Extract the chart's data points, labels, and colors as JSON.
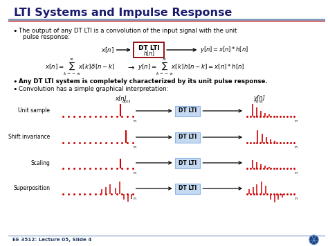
{
  "title": "LTI Systems and Impulse Response",
  "title_color": "#1a1a6e",
  "title_fontsize": 11.5,
  "bg_color": "#FFFFFF",
  "accent_color": "#8B0000",
  "footer": "EE 3512: Lecture 05, Slide 4",
  "row_labels": [
    "Unit sample",
    "Shift invariance",
    "Scaling",
    "Superposition"
  ],
  "dt_lti_box_color": "#C5D9F1",
  "dt_lti_border": "#8eb4e3",
  "signal_color": "#CC0000",
  "dot_color": "#CC0000",
  "title_sep_color1": "#4472C4",
  "title_sep_color2": "#C00000"
}
